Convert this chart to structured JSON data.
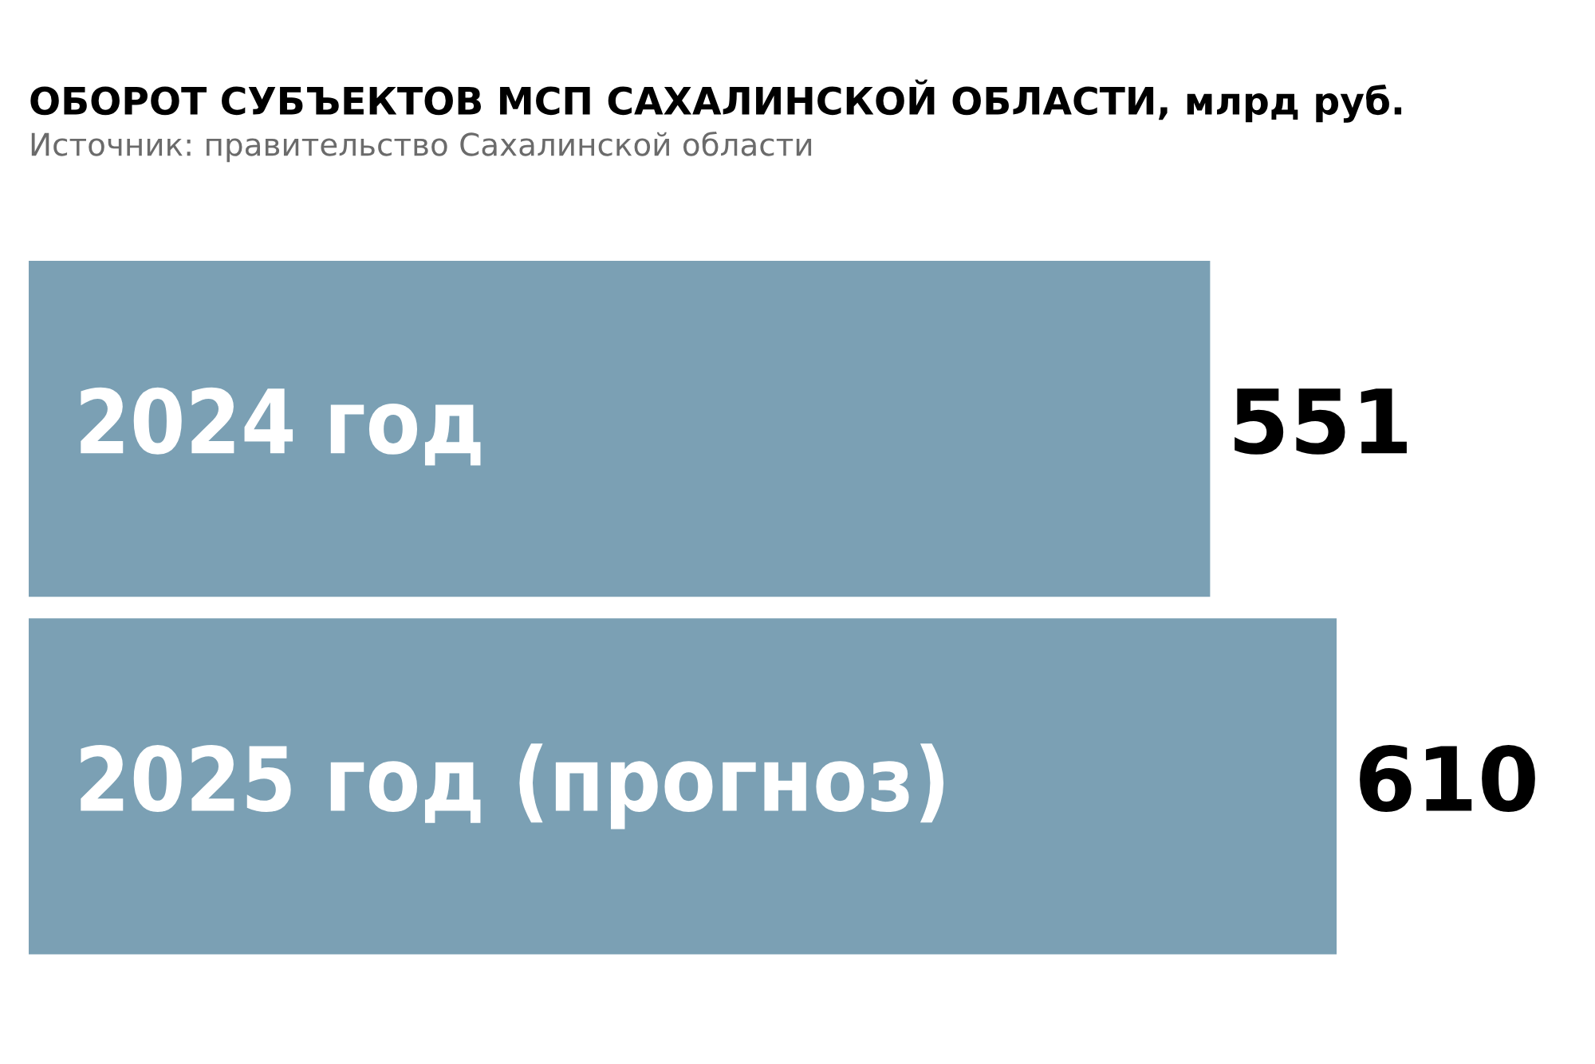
{
  "chart_data": {
    "type": "bar",
    "orientation": "horizontal",
    "title": "ОБОРОТ СУБЪЕКТОВ МСП САХАЛИНСКОЙ ОБЛАСТИ, млрд руб.",
    "subtitle": "Источник: правительство Сахалинской области",
    "categories": [
      "2024 год",
      "2025 год (прогноз)"
    ],
    "values": [
      551,
      610
    ],
    "color": "#7ba0b4",
    "data_labels": true
  }
}
